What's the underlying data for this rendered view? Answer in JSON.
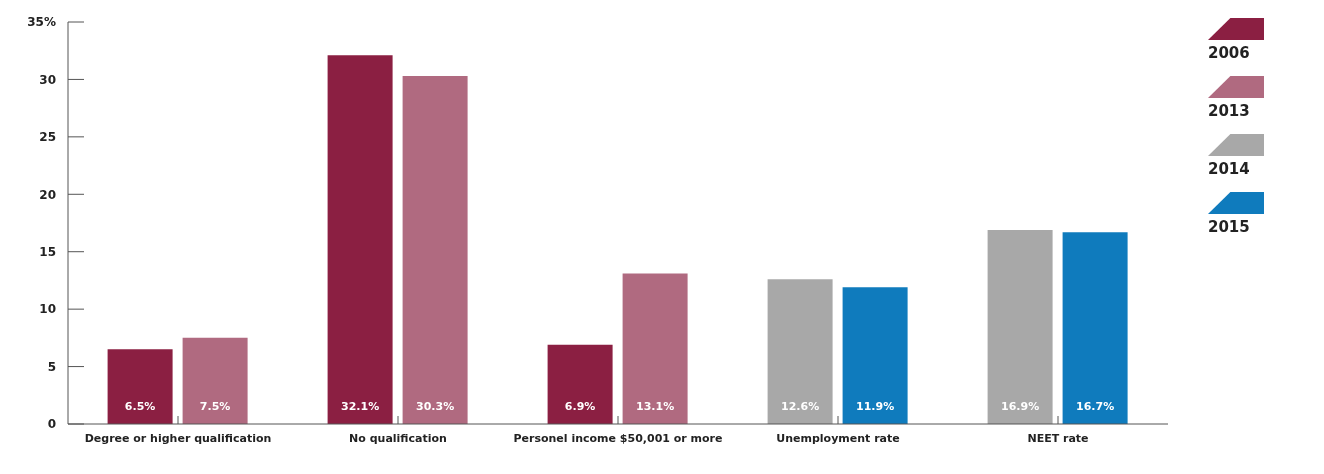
{
  "chart_data": {
    "type": "bar",
    "categories": [
      "Degree or higher qualification",
      "No qualification",
      "Personel income $50,001 or more",
      "Unemployment rate",
      "NEET rate"
    ],
    "series": [
      {
        "name": "2006",
        "color": "#8b1f42",
        "values": [
          6.5,
          32.1,
          6.9,
          null,
          null
        ],
        "value_labels": [
          "6.5%",
          "32.1%",
          "6.9%",
          null,
          null
        ]
      },
      {
        "name": "2013",
        "color": "#b06a80",
        "values": [
          7.5,
          30.3,
          13.1,
          null,
          null
        ],
        "value_labels": [
          "7.5%",
          "30.3%",
          "13.1%",
          null,
          null
        ]
      },
      {
        "name": "2014",
        "color": "#a8a8a8",
        "values": [
          null,
          null,
          null,
          12.6,
          16.9
        ],
        "value_labels": [
          null,
          null,
          null,
          "12.6%",
          "16.9%"
        ]
      },
      {
        "name": "2015",
        "color": "#0f7bbd",
        "values": [
          null,
          null,
          null,
          11.9,
          16.7
        ],
        "value_labels": [
          null,
          null,
          null,
          "11.9%",
          "16.7%"
        ]
      }
    ],
    "ylim": [
      0,
      35
    ],
    "yticks": [
      0,
      5,
      10,
      15,
      20,
      25,
      30,
      {
        "value": 35,
        "label": "35%"
      }
    ],
    "grid": false,
    "legend": "right"
  }
}
